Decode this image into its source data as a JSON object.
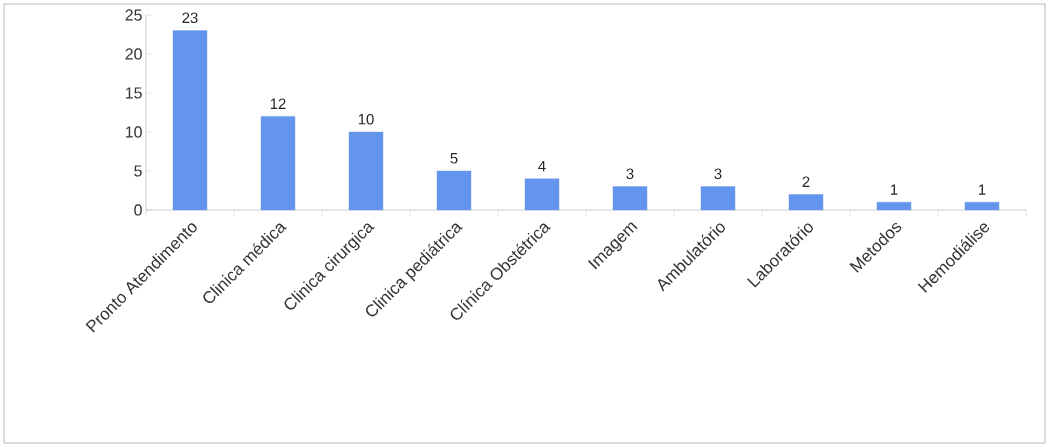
{
  "chart_data": {
    "type": "bar",
    "categories": [
      "Pronto Atendimento",
      "Clinica médica",
      "Clinica cirurgica",
      "Clinica pediátrica",
      "Clínica Obstétrica",
      "Imagem",
      "Ambulatório",
      "Laboratório",
      "Metodos",
      "Hemodiálise"
    ],
    "values": [
      23,
      12,
      10,
      5,
      4,
      3,
      3,
      2,
      1,
      1
    ],
    "color": "#6495ed",
    "ylim": [
      0,
      25
    ],
    "yticks": [
      0,
      5,
      10,
      15,
      20,
      25
    ],
    "data_labels": true,
    "grid": false
  }
}
